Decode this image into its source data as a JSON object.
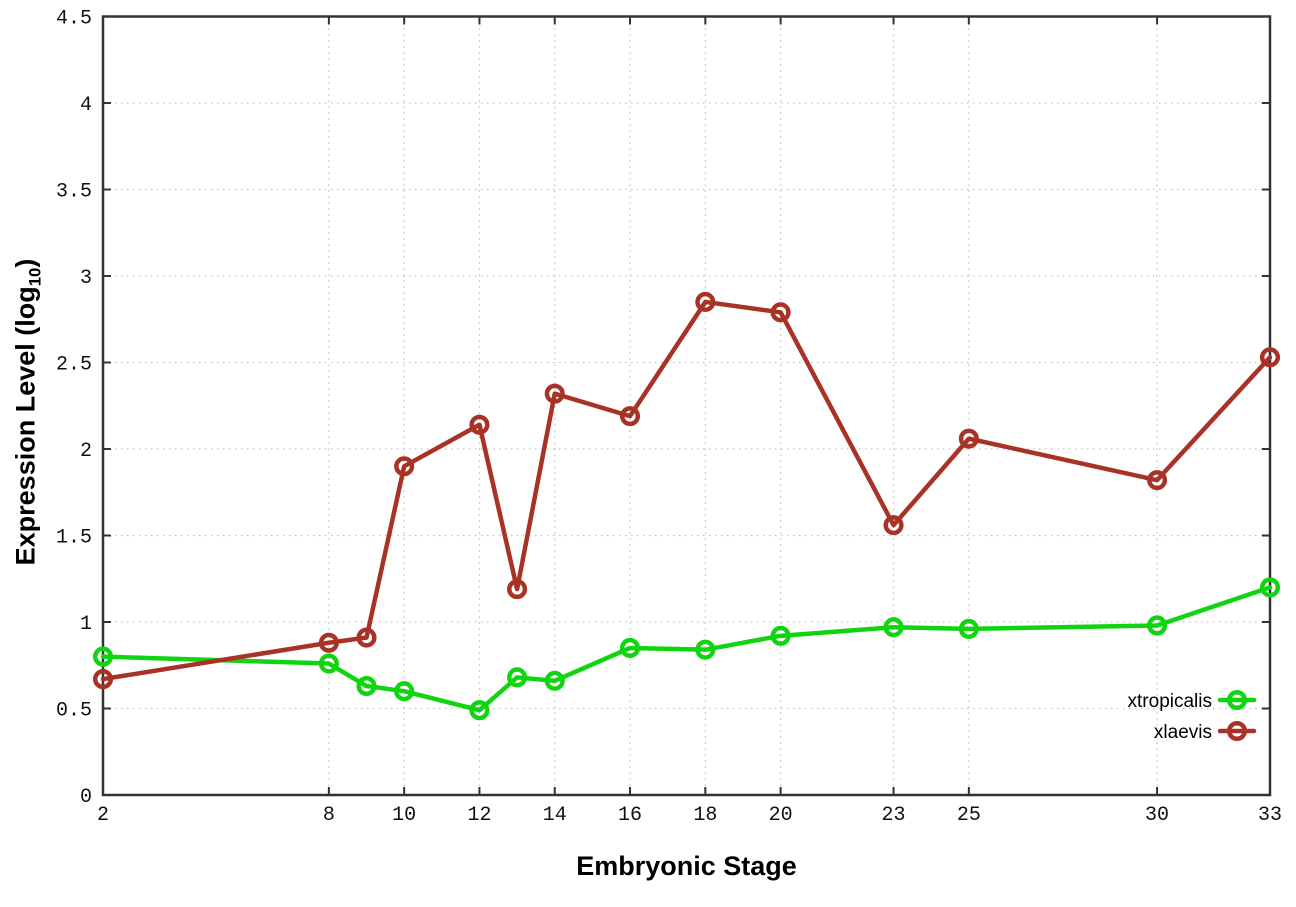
{
  "chart_data": {
    "type": "line",
    "x": [
      2,
      8,
      9,
      10,
      12,
      13,
      14,
      16,
      18,
      20,
      23,
      25,
      30,
      33
    ],
    "series": [
      {
        "name": "xtropicalis",
        "color": "#11d411",
        "values": [
          0.8,
          0.76,
          0.63,
          0.6,
          0.49,
          0.68,
          0.66,
          0.85,
          0.84,
          0.92,
          0.97,
          0.96,
          0.98,
          1.2
        ]
      },
      {
        "name": "xlaevis",
        "color": "#a93226",
        "values": [
          0.67,
          0.88,
          0.91,
          1.9,
          2.14,
          1.19,
          2.32,
          2.19,
          2.85,
          2.79,
          1.56,
          2.06,
          1.82,
          2.53
        ]
      }
    ],
    "xlabel": "Embryonic Stage",
    "ylabel": "Expression Level (log10)",
    "ylabel_parts": {
      "main": "Expression Level (log",
      "sub": "10",
      "close": ")"
    },
    "xlim": [
      2,
      33
    ],
    "ylim": [
      0,
      4.5
    ],
    "xticks": [
      2,
      8,
      10,
      12,
      14,
      16,
      18,
      20,
      23,
      25,
      30,
      33
    ],
    "xtick_labels": [
      "2",
      "8",
      "10",
      "12",
      "14",
      "16",
      "18",
      "20",
      "23",
      "25",
      "30",
      "33"
    ],
    "yticks": [
      0,
      0.5,
      1,
      1.5,
      2,
      2.5,
      3,
      3.5,
      4,
      4.5
    ],
    "ytick_labels": [
      "0",
      "0.5",
      "1",
      "1.5",
      "2",
      "2.5",
      "3",
      "3.5",
      "4",
      "4.5"
    ],
    "grid": true,
    "grid_style": "dotted",
    "legend_position": "bottom-right",
    "marker": "open-circle",
    "colors": {
      "axis": "#333333",
      "grid": "#c2c2c2",
      "tick_text": "#111111",
      "legend_text": "#000000"
    }
  }
}
